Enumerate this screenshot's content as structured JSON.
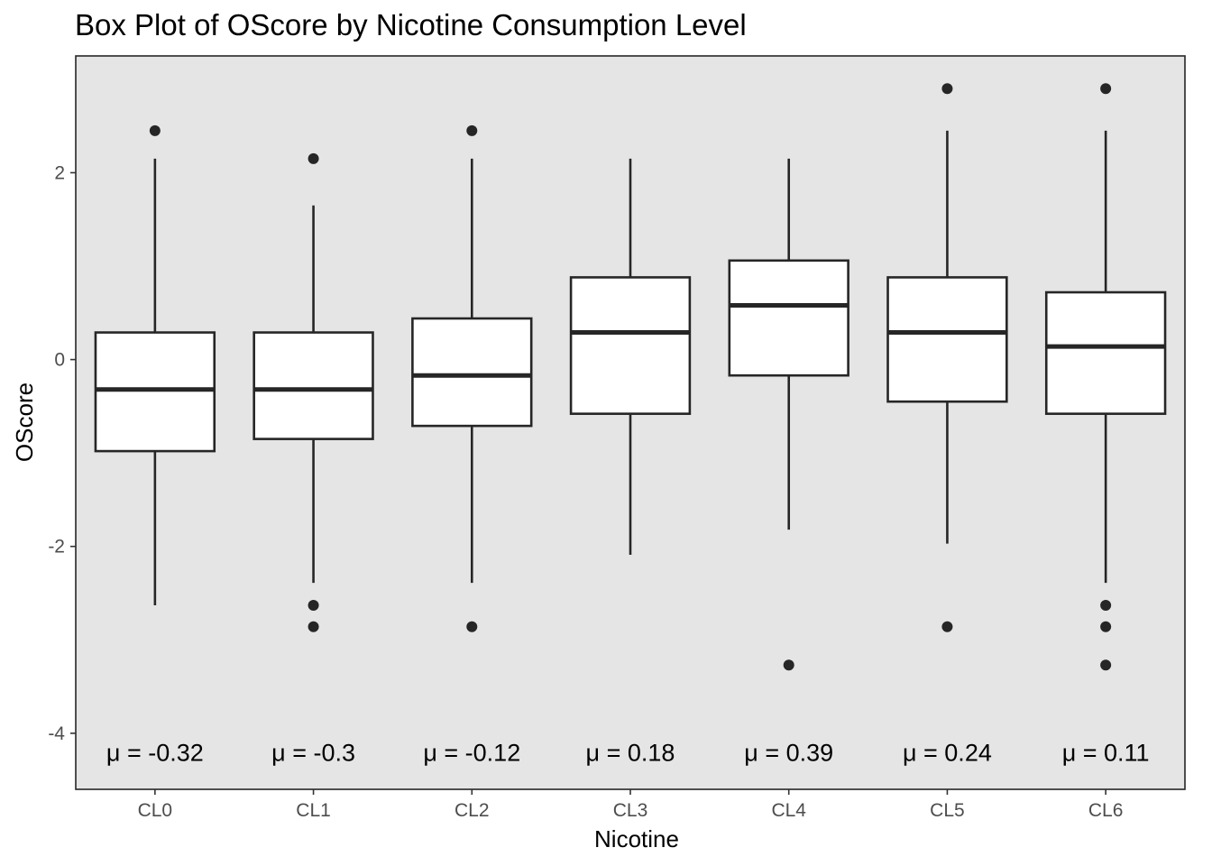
{
  "chart_data": {
    "type": "box",
    "title": "Box Plot of OScore by Nicotine Consumption Level",
    "xlabel": "Nicotine",
    "ylabel": "OScore",
    "ylim": [
      -4.6,
      3.25
    ],
    "yticks": [
      -4,
      -2,
      0,
      2
    ],
    "ytick_labels": [
      "-4",
      "-2",
      "0",
      "2"
    ],
    "categories": [
      "CL0",
      "CL1",
      "CL2",
      "CL3",
      "CL4",
      "CL5",
      "CL6"
    ],
    "grid": false,
    "colors": {
      "panel": "#e5e5e5",
      "box_fill": "#ffffff",
      "stroke": "#262626",
      "tick_text": "#4d4d4d"
    },
    "boxes": [
      {
        "category": "CL0",
        "q1": -0.98,
        "median": -0.32,
        "q3": 0.29,
        "whisker_low": -2.63,
        "whisker_high": 2.15,
        "outliers": [
          2.45
        ]
      },
      {
        "category": "CL1",
        "q1": -0.85,
        "median": -0.32,
        "q3": 0.29,
        "whisker_low": -2.39,
        "whisker_high": 1.65,
        "outliers": [
          2.15,
          -2.63,
          -2.86
        ]
      },
      {
        "category": "CL2",
        "q1": -0.71,
        "median": -0.17,
        "q3": 0.44,
        "whisker_low": -2.39,
        "whisker_high": 2.15,
        "outliers": [
          2.45,
          -2.86
        ]
      },
      {
        "category": "CL3",
        "q1": -0.58,
        "median": 0.29,
        "q3": 0.88,
        "whisker_low": -2.09,
        "whisker_high": 2.15,
        "outliers": []
      },
      {
        "category": "CL4",
        "q1": -0.17,
        "median": 0.58,
        "q3": 1.06,
        "whisker_low": -1.82,
        "whisker_high": 2.15,
        "outliers": [
          -3.27
        ]
      },
      {
        "category": "CL5",
        "q1": -0.45,
        "median": 0.29,
        "q3": 0.88,
        "whisker_low": -1.97,
        "whisker_high": 2.45,
        "outliers": [
          2.9,
          -2.86
        ]
      },
      {
        "category": "CL6",
        "q1": -0.58,
        "median": 0.14,
        "q3": 0.72,
        "whisker_low": -2.39,
        "whisker_high": 2.45,
        "outliers": [
          2.9,
          -2.63,
          -2.86,
          -3.27
        ]
      }
    ],
    "means": [
      -0.32,
      -0.3,
      -0.12,
      0.18,
      0.39,
      0.24,
      0.11
    ],
    "mean_labels": [
      "μ = -0.32",
      "μ = -0.3",
      "μ = -0.12",
      "μ = 0.18",
      "μ = 0.39",
      "μ = 0.24",
      "μ = 0.11"
    ],
    "mean_label_y": -4.2
  }
}
